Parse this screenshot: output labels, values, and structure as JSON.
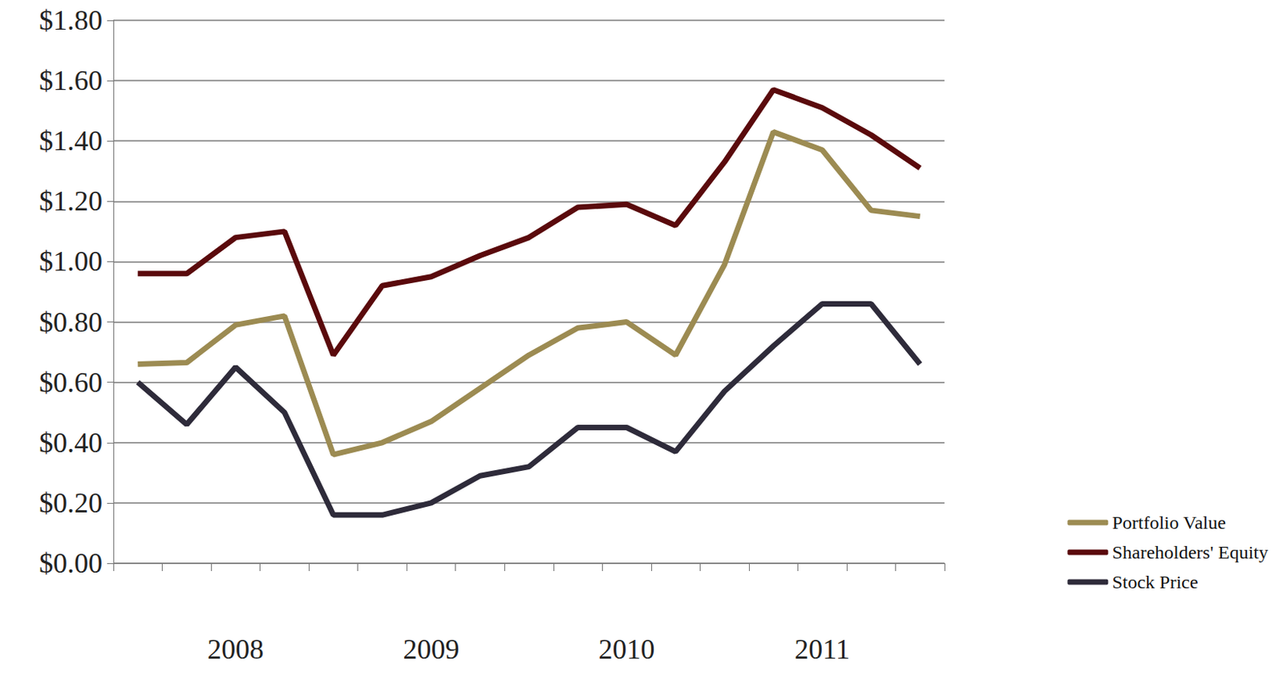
{
  "chart_data": {
    "type": "line",
    "categories": [
      null,
      null,
      "2008",
      null,
      null,
      null,
      "2009",
      null,
      null,
      null,
      "2010",
      null,
      null,
      null,
      "2011",
      null,
      null
    ],
    "series": [
      {
        "name": "Portfolio Value",
        "color": "#9c8b52",
        "values": [
          0.66,
          0.665,
          0.79,
          0.82,
          0.36,
          0.4,
          0.47,
          0.58,
          0.69,
          0.78,
          0.8,
          0.69,
          0.99,
          1.43,
          1.37,
          1.17,
          1.15
        ]
      },
      {
        "name": "Shareholders' Equity",
        "color": "#5a0a0c",
        "values": [
          0.96,
          0.96,
          1.08,
          1.1,
          0.69,
          0.92,
          0.95,
          1.02,
          1.08,
          1.18,
          1.19,
          1.12,
          1.33,
          1.57,
          1.51,
          1.42,
          1.31
        ]
      },
      {
        "name": "Stock Price",
        "color": "#2e2b3a",
        "values": [
          0.6,
          0.46,
          0.65,
          0.5,
          0.16,
          0.16,
          0.2,
          0.29,
          0.32,
          0.45,
          0.45,
          0.37,
          0.57,
          0.72,
          0.86,
          0.86,
          0.66
        ]
      }
    ],
    "ylim": [
      0,
      1.8
    ],
    "yticks": [
      {
        "value": 0,
        "label": "$0.00"
      },
      {
        "value": 0.2,
        "label": "$0.20"
      },
      {
        "value": 0.4,
        "label": "$0.40"
      },
      {
        "value": 0.6,
        "label": "$0.60"
      },
      {
        "value": 0.8,
        "label": "$0.80"
      },
      {
        "value": 1.0,
        "label": "$1.00"
      },
      {
        "value": 1.2,
        "label": "$1.20"
      },
      {
        "value": 1.4,
        "label": "$1.40"
      },
      {
        "value": 1.6,
        "label": "$1.60"
      },
      {
        "value": 1.8,
        "label": "$1.80"
      }
    ],
    "grid": true,
    "legend": "lower right"
  }
}
